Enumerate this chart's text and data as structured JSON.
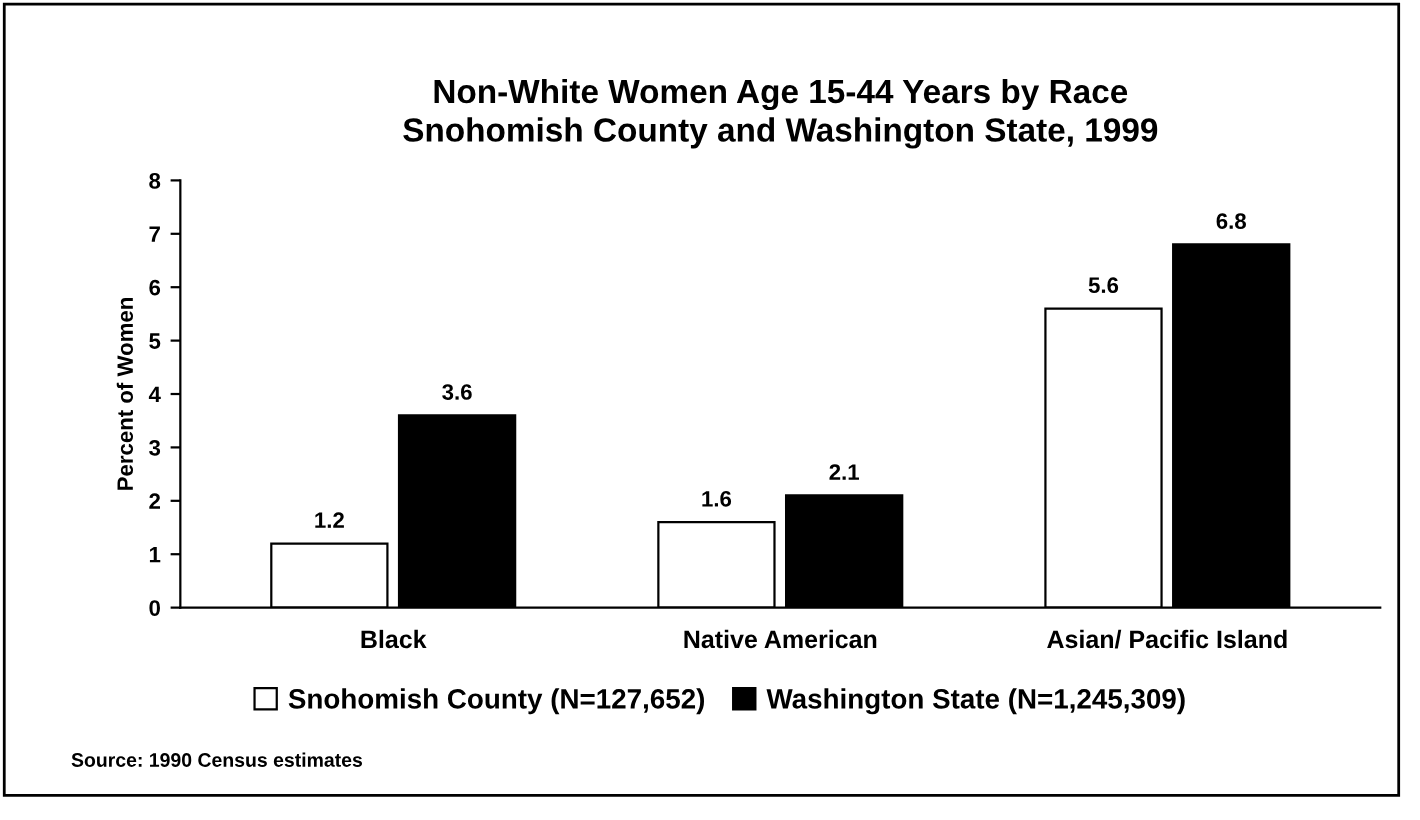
{
  "chart_data": {
    "type": "bar",
    "title": "Non-White Women Age 15-44 Years by Race\nSnohomish County and Washington State, 1999",
    "ylabel": "Percent of Women",
    "categories": [
      "Black",
      "Native American",
      "Asian/ Pacific Island"
    ],
    "series": [
      {
        "name": "Snohomish County (N=127,652)",
        "color": "#ffffff",
        "values": [
          1.2,
          1.6,
          5.6
        ]
      },
      {
        "name": "Washington State (N=1,245,309)",
        "color": "#000000",
        "values": [
          3.6,
          2.1,
          6.8
        ]
      }
    ],
    "ylim": [
      0,
      8
    ],
    "yticks": [
      0,
      1,
      2,
      3,
      4,
      5,
      6,
      7,
      8
    ],
    "data_labels": true,
    "grid": false,
    "legend": "bottom",
    "annotations": [
      "Source: 1990 Census estimates"
    ]
  }
}
